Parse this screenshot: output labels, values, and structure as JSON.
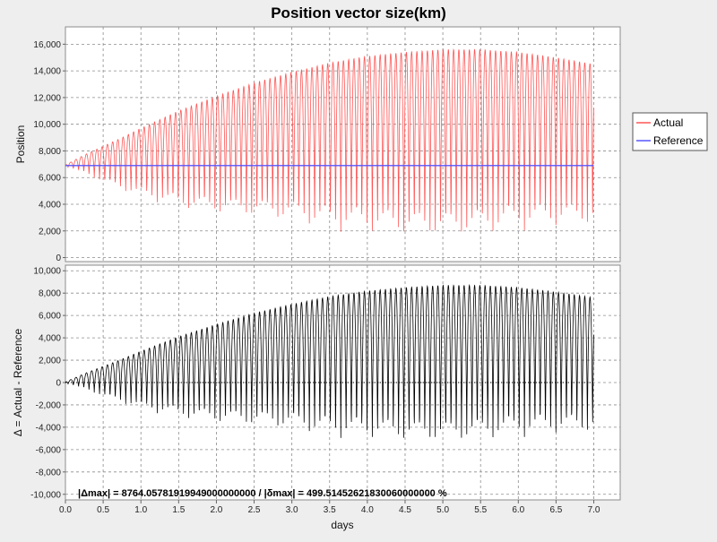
{
  "chart_data": [
    {
      "type": "line",
      "title": "Position vector size(km)",
      "ylabel": "Position",
      "xlabel": "",
      "xlim": [
        0,
        7.35
      ],
      "ylim": [
        -300,
        17300
      ],
      "yticks": [
        0,
        2000,
        4000,
        6000,
        8000,
        10000,
        12000,
        14000,
        16000
      ],
      "ytick_labels": [
        "0",
        "2,000",
        "4,000",
        "6,000",
        "8,000",
        "10,000",
        "12,000",
        "14,000",
        "16,000"
      ],
      "grid": true,
      "legend": "right",
      "series": [
        {
          "name": "Actual",
          "color": "#ff5555",
          "baseline": 6900,
          "x": [
            0,
            0.25,
            0.5,
            0.75,
            1.0,
            1.5,
            2.0,
            2.5,
            3.0,
            3.5,
            4.0,
            4.5,
            5.0,
            5.5,
            6.0,
            6.5,
            7.0
          ],
          "max": [
            6950,
            7700,
            8350,
            9000,
            9700,
            11000,
            12100,
            13100,
            13900,
            14600,
            15100,
            15400,
            15600,
            15600,
            15400,
            15000,
            14500
          ],
          "min": [
            6850,
            6300,
            5600,
            5000,
            4500,
            3700,
            3200,
            2900,
            2600,
            2000,
            1800,
            1500,
            1400,
            1600,
            2000,
            2200,
            2300
          ]
        },
        {
          "name": "Reference",
          "color": "#5555ff",
          "x": [
            0,
            7.0
          ],
          "y": [
            6900,
            6900
          ]
        }
      ]
    },
    {
      "type": "line",
      "title": "",
      "ylabel": "Δ = Actual - Reference",
      "xlabel": "days",
      "xlim": [
        0,
        7.35
      ],
      "ylim": [
        -10500,
        10500
      ],
      "xticks": [
        0,
        0.5,
        1.0,
        1.5,
        2.0,
        2.5,
        3.0,
        3.5,
        4.0,
        4.5,
        5.0,
        5.5,
        6.0,
        6.5,
        7.0
      ],
      "xtick_labels": [
        "0.0",
        "0.5",
        "1.0",
        "1.5",
        "2.0",
        "2.5",
        "3.0",
        "3.5",
        "4.0",
        "4.5",
        "5.0",
        "5.5",
        "6.0",
        "6.5",
        "7.0"
      ],
      "yticks": [
        -10000,
        -8000,
        -6000,
        -4000,
        -2000,
        0,
        2000,
        4000,
        6000,
        8000,
        10000
      ],
      "ytick_labels": [
        "-10,000",
        "-8,000",
        "-6,000",
        "-4,000",
        "-2,000",
        "0",
        "2,000",
        "4,000",
        "6,000",
        "8,000",
        "10,000"
      ],
      "grid": true,
      "series": [
        {
          "name": "",
          "color": "#000000",
          "baseline": 0,
          "x": [
            0,
            0.25,
            0.5,
            0.75,
            1.0,
            1.5,
            2.0,
            2.5,
            3.0,
            3.5,
            4.0,
            4.5,
            5.0,
            5.5,
            6.0,
            6.5,
            7.0
          ],
          "max": [
            50,
            800,
            1450,
            2100,
            2800,
            4100,
            5200,
            6200,
            7000,
            7700,
            8200,
            8500,
            8700,
            8700,
            8500,
            8100,
            7600
          ],
          "min": [
            -50,
            -600,
            -1300,
            -1900,
            -2400,
            -3200,
            -3700,
            -4000,
            -4300,
            -4900,
            -5100,
            -5400,
            -5500,
            -5300,
            -4900,
            -4700,
            -4600
          ]
        }
      ]
    }
  ],
  "stats_text": "|Δmax| = 8764.05781919949000000000        /        |δmax| = 499.51452621830060000000 %",
  "oscillation_period_days": 0.0695
}
